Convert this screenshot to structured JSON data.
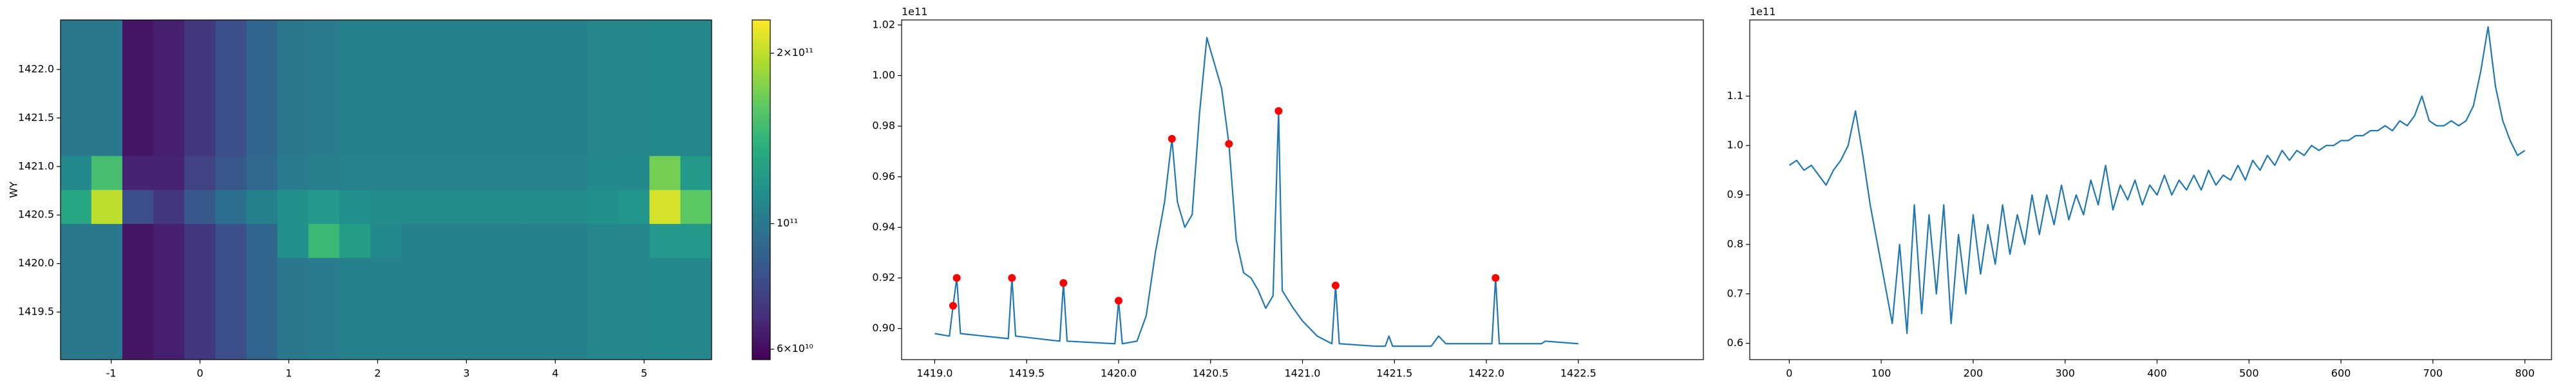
{
  "chart_data": [
    {
      "type": "heatmap",
      "ylabel": "WY",
      "xlim": [
        -1.57,
        5.76
      ],
      "ylim": [
        1419.01,
        1422.51
      ],
      "xticks": [
        -1,
        0,
        1,
        2,
        3,
        4,
        5
      ],
      "yticks": [
        1419.5,
        {
          "value": 1420.0,
          "label": "1420.0"
        },
        1420.5,
        {
          "value": 1421.0,
          "label": "1421.0"
        },
        1421.5,
        {
          "value": 1422.0,
          "label": "1422.0"
        }
      ],
      "colormap": "viridis",
      "color_scale": "log",
      "clim": [
        57500000000.0,
        229000000000.0
      ],
      "colorbar_ticks": [
        {
          "value": 200000000000.0,
          "label": "2×10¹¹"
        },
        {
          "value": 100000000000.0,
          "label": "10¹¹"
        },
        {
          "value": 60000000000.0,
          "label": "6×10¹⁰"
        }
      ],
      "z": [
        [
          100000000000.0,
          100000000000.0,
          62000000000.0,
          65000000000.0,
          72000000000.0,
          80000000000.0,
          90000000000.0,
          100000000000.0,
          102000000000.0,
          105000000000.0,
          105000000000.0,
          105000000000.0,
          105000000000.0,
          105000000000.0,
          105000000000.0,
          105000000000.0,
          105000000000.0,
          108000000000.0,
          108000000000.0,
          110000000000.0,
          108000000000.0
        ],
        [
          100000000000.0,
          100000000000.0,
          62000000000.0,
          65000000000.0,
          72000000000.0,
          80000000000.0,
          90000000000.0,
          100000000000.0,
          102000000000.0,
          105000000000.0,
          105000000000.0,
          105000000000.0,
          105000000000.0,
          105000000000.0,
          105000000000.0,
          105000000000.0,
          105000000000.0,
          108000000000.0,
          108000000000.0,
          110000000000.0,
          108000000000.0
        ],
        [
          100000000000.0,
          100000000000.0,
          62000000000.0,
          65000000000.0,
          72000000000.0,
          80000000000.0,
          90000000000.0,
          100000000000.0,
          102000000000.0,
          105000000000.0,
          105000000000.0,
          105000000000.0,
          105000000000.0,
          105000000000.0,
          105000000000.0,
          105000000000.0,
          105000000000.0,
          108000000000.0,
          108000000000.0,
          110000000000.0,
          108000000000.0
        ],
        [
          100000000000.0,
          100000000000.0,
          62000000000.0,
          65000000000.0,
          72000000000.0,
          80000000000.0,
          90000000000.0,
          115000000000.0,
          145000000000.0,
          125000000000.0,
          110000000000.0,
          105000000000.0,
          105000000000.0,
          105000000000.0,
          105000000000.0,
          105000000000.0,
          105000000000.0,
          108000000000.0,
          108000000000.0,
          120000000000.0,
          120000000000.0
        ],
        [
          130000000000.0,
          200000000000.0,
          80000000000.0,
          72000000000.0,
          85000000000.0,
          95000000000.0,
          105000000000.0,
          115000000000.0,
          120000000000.0,
          115000000000.0,
          112000000000.0,
          112000000000.0,
          112000000000.0,
          112000000000.0,
          112000000000.0,
          112000000000.0,
          112000000000.0,
          115000000000.0,
          118000000000.0,
          210000000000.0,
          160000000000.0
        ],
        [
          110000000000.0,
          150000000000.0,
          66000000000.0,
          66000000000.0,
          76000000000.0,
          84000000000.0,
          92000000000.0,
          102000000000.0,
          103000000000.0,
          106000000000.0,
          106000000000.0,
          106000000000.0,
          106000000000.0,
          106000000000.0,
          106000000000.0,
          106000000000.0,
          106000000000.0,
          109000000000.0,
          110000000000.0,
          170000000000.0,
          120000000000.0
        ],
        [
          100000000000.0,
          100000000000.0,
          62000000000.0,
          65000000000.0,
          72000000000.0,
          80000000000.0,
          90000000000.0,
          100000000000.0,
          102000000000.0,
          105000000000.0,
          105000000000.0,
          105000000000.0,
          105000000000.0,
          105000000000.0,
          105000000000.0,
          105000000000.0,
          105000000000.0,
          108000000000.0,
          108000000000.0,
          110000000000.0,
          108000000000.0
        ],
        [
          100000000000.0,
          100000000000.0,
          62000000000.0,
          65000000000.0,
          72000000000.0,
          80000000000.0,
          90000000000.0,
          100000000000.0,
          102000000000.0,
          105000000000.0,
          105000000000.0,
          105000000000.0,
          105000000000.0,
          105000000000.0,
          105000000000.0,
          105000000000.0,
          105000000000.0,
          108000000000.0,
          108000000000.0,
          110000000000.0,
          108000000000.0
        ],
        [
          100000000000.0,
          100000000000.0,
          62000000000.0,
          65000000000.0,
          72000000000.0,
          80000000000.0,
          90000000000.0,
          100000000000.0,
          102000000000.0,
          105000000000.0,
          105000000000.0,
          105000000000.0,
          105000000000.0,
          105000000000.0,
          105000000000.0,
          105000000000.0,
          105000000000.0,
          108000000000.0,
          108000000000.0,
          110000000000.0,
          108000000000.0
        ],
        [
          100000000000.0,
          100000000000.0,
          62000000000.0,
          65000000000.0,
          72000000000.0,
          80000000000.0,
          90000000000.0,
          100000000000.0,
          102000000000.0,
          105000000000.0,
          105000000000.0,
          105000000000.0,
          105000000000.0,
          105000000000.0,
          105000000000.0,
          105000000000.0,
          105000000000.0,
          108000000000.0,
          108000000000.0,
          110000000000.0,
          108000000000.0
        ]
      ]
    },
    {
      "type": "line",
      "y_offset_label": "1e11",
      "color": "#1f77b4",
      "xlim": [
        1418.82,
        1423.18
      ],
      "ylim": [
        0.8877,
        1.022
      ],
      "xticks": [
        {
          "value": 1419.0,
          "label": "1419.0"
        },
        1419.5,
        {
          "value": 1420.0,
          "label": "1420.0"
        },
        1420.5,
        {
          "value": 1421.0,
          "label": "1421.0"
        },
        1421.5,
        {
          "value": 1422.0,
          "label": "1422.0"
        },
        1422.5
      ],
      "yticks": [
        {
          "value": 0.9,
          "label": "0.90"
        },
        0.92,
        0.94,
        0.96,
        0.98,
        {
          "value": 1.0,
          "label": "1.00"
        },
        1.02
      ],
      "x": [
        1419.0,
        1419.08,
        1419.1,
        1419.12,
        1419.14,
        1419.4,
        1419.42,
        1419.44,
        1419.68,
        1419.7,
        1419.72,
        1419.98,
        1420.0,
        1420.02,
        1420.1,
        1420.15,
        1420.2,
        1420.25,
        1420.29,
        1420.32,
        1420.36,
        1420.4,
        1420.44,
        1420.48,
        1420.52,
        1420.56,
        1420.6,
        1420.64,
        1420.68,
        1420.72,
        1420.76,
        1420.8,
        1420.84,
        1420.87,
        1420.89,
        1420.95,
        1421.0,
        1421.08,
        1421.16,
        1421.18,
        1421.2,
        1421.4,
        1421.45,
        1421.47,
        1421.49,
        1421.7,
        1421.74,
        1421.78,
        1422.03,
        1422.05,
        1422.07,
        1422.3,
        1422.32,
        1422.5
      ],
      "values": [
        0.898,
        0.897,
        0.909,
        0.92,
        0.898,
        0.896,
        0.92,
        0.897,
        0.895,
        0.918,
        0.895,
        0.894,
        0.911,
        0.894,
        0.895,
        0.905,
        0.93,
        0.95,
        0.975,
        0.95,
        0.94,
        0.945,
        0.985,
        1.015,
        1.005,
        0.995,
        0.973,
        0.935,
        0.922,
        0.92,
        0.915,
        0.908,
        0.913,
        0.986,
        0.915,
        0.908,
        0.903,
        0.897,
        0.894,
        0.917,
        0.894,
        0.893,
        0.893,
        0.897,
        0.893,
        0.893,
        0.897,
        0.894,
        0.894,
        0.92,
        0.894,
        0.894,
        0.895,
        0.894
      ],
      "peaks": {
        "color": "#ff0000",
        "x": [
          1419.1,
          1419.12,
          1419.42,
          1419.7,
          1420.0,
          1420.29,
          1420.6,
          1420.87,
          1421.18,
          1422.05
        ],
        "values": [
          0.909,
          0.92,
          0.92,
          0.918,
          0.911,
          0.975,
          0.973,
          0.986,
          0.917,
          0.92
        ]
      }
    },
    {
      "type": "line",
      "y_offset_label": "1e11",
      "color": "#1f77b4",
      "xlim": [
        -43,
        829
      ],
      "ylim": [
        0.567,
        1.254
      ],
      "xticks": [
        0,
        100,
        200,
        300,
        400,
        500,
        600,
        700,
        800
      ],
      "yticks": [
        0.6,
        0.7,
        0.8,
        0.9,
        {
          "value": 1.0,
          "label": "1.0"
        },
        1.1
      ],
      "x": [
        0,
        8,
        16,
        24,
        32,
        40,
        48,
        56,
        64,
        72,
        80,
        88,
        96,
        104,
        112,
        120,
        128,
        136,
        144,
        152,
        160,
        168,
        176,
        184,
        192,
        200,
        208,
        216,
        224,
        232,
        240,
        248,
        256,
        264,
        272,
        280,
        288,
        296,
        304,
        312,
        320,
        328,
        336,
        344,
        352,
        360,
        368,
        376,
        384,
        392,
        400,
        408,
        416,
        424,
        432,
        440,
        448,
        456,
        464,
        472,
        480,
        488,
        496,
        504,
        512,
        520,
        528,
        536,
        544,
        552,
        560,
        568,
        576,
        584,
        592,
        600,
        608,
        616,
        624,
        632,
        640,
        648,
        656,
        664,
        672,
        680,
        688,
        696,
        704,
        712,
        720,
        728,
        736,
        744,
        752,
        760,
        768,
        776,
        784,
        792,
        800
      ],
      "values": [
        0.96,
        0.97,
        0.95,
        0.96,
        0.94,
        0.92,
        0.95,
        0.97,
        1.0,
        1.07,
        0.98,
        0.88,
        0.8,
        0.72,
        0.64,
        0.8,
        0.62,
        0.88,
        0.66,
        0.86,
        0.7,
        0.88,
        0.64,
        0.82,
        0.7,
        0.86,
        0.74,
        0.84,
        0.76,
        0.88,
        0.78,
        0.86,
        0.8,
        0.9,
        0.82,
        0.9,
        0.84,
        0.92,
        0.85,
        0.9,
        0.86,
        0.93,
        0.88,
        0.96,
        0.87,
        0.92,
        0.89,
        0.93,
        0.88,
        0.92,
        0.9,
        0.94,
        0.9,
        0.93,
        0.91,
        0.94,
        0.91,
        0.95,
        0.92,
        0.94,
        0.93,
        0.96,
        0.93,
        0.97,
        0.95,
        0.98,
        0.96,
        0.99,
        0.97,
        0.99,
        0.98,
        1.0,
        0.99,
        1.0,
        1.0,
        1.01,
        1.01,
        1.02,
        1.02,
        1.03,
        1.03,
        1.04,
        1.03,
        1.05,
        1.04,
        1.06,
        1.1,
        1.05,
        1.04,
        1.04,
        1.05,
        1.04,
        1.05,
        1.08,
        1.15,
        1.24,
        1.12,
        1.05,
        1.01,
        0.98,
        0.99
      ]
    }
  ]
}
